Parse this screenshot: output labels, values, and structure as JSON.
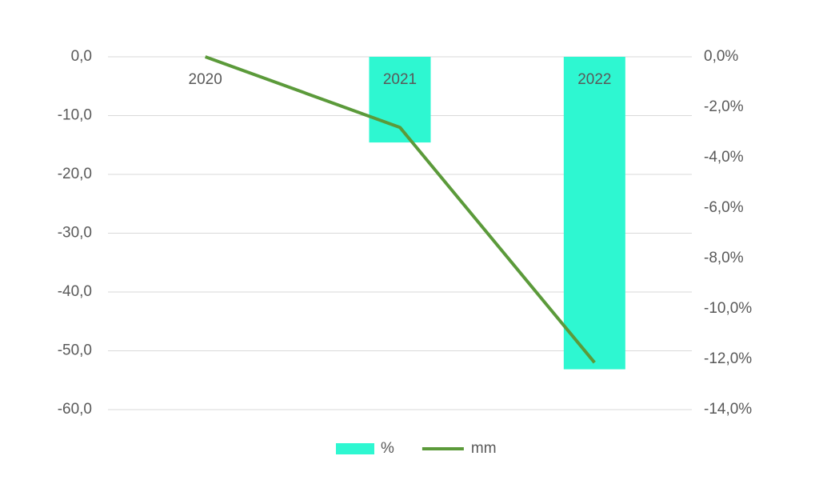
{
  "chart_data": {
    "type": "bar-line",
    "categories": [
      "2020",
      "2021",
      "2022"
    ],
    "series": [
      {
        "name": "%",
        "type": "bar",
        "axis": "y2",
        "color": "#2ef7d1",
        "values": [
          0,
          -3.4,
          -12.4
        ]
      },
      {
        "name": "mm",
        "type": "line",
        "axis": "y",
        "color": "#5b9a3a",
        "values": [
          0,
          -12.0,
          -52.0
        ]
      }
    ],
    "ylim": [
      -60,
      0
    ],
    "yticks": [
      {
        "value": 0,
        "label": "0,0"
      },
      {
        "value": -10,
        "label": "-10,0"
      },
      {
        "value": -20,
        "label": "-20,0"
      },
      {
        "value": -30,
        "label": "-30,0"
      },
      {
        "value": -40,
        "label": "-40,0"
      },
      {
        "value": -50,
        "label": "-50,0"
      },
      {
        "value": -60,
        "label": "-60,0"
      }
    ],
    "y2lim": [
      -14,
      0
    ],
    "y2ticks": [
      {
        "value": 0,
        "label": "0,0%"
      },
      {
        "value": -2,
        "label": "-2,0%"
      },
      {
        "value": -4,
        "label": "-4,0%"
      },
      {
        "value": -6,
        "label": "-6,0%"
      },
      {
        "value": -8,
        "label": "-8,0%"
      },
      {
        "value": -10,
        "label": "-10,0%"
      },
      {
        "value": -12,
        "label": "-12,0%"
      },
      {
        "value": -14,
        "label": "-14,0%"
      }
    ],
    "grid": true,
    "legend": "bottom"
  }
}
